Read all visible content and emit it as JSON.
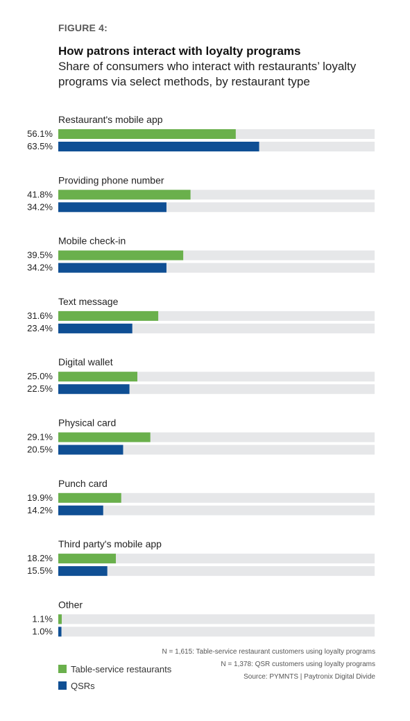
{
  "header": {
    "figure_label": "FIGURE 4:",
    "title": "How patrons interact with loyalty programs",
    "subtitle": "Share of consumers who interact with restaurants’ loyalty programs via select methods, by restaurant type"
  },
  "colors": {
    "table_service": "#6ab04c",
    "qsr": "#0f4f94",
    "track": "#e6e7e9"
  },
  "chart_data": {
    "type": "bar",
    "orientation": "horizontal",
    "title": "How patrons interact with loyalty programs",
    "subtitle": "Share of consumers who interact with restaurants’ loyalty programs via select methods, by restaurant type",
    "categories": [
      "Restaurant's mobile app",
      "Providing phone number",
      "Mobile check-in",
      "Text message",
      "Digital wallet",
      "Physical card",
      "Punch card",
      "Third party's mobile app",
      "Other"
    ],
    "series": [
      {
        "name": "Table-service restaurants",
        "values": [
          56.1,
          41.8,
          39.5,
          31.6,
          25.0,
          29.1,
          19.9,
          18.2,
          1.1
        ],
        "labels": [
          "56.1%",
          "41.8%",
          "39.5%",
          "31.6%",
          "25.0%",
          "29.1%",
          "19.9%",
          "18.2%",
          "1.1%"
        ]
      },
      {
        "name": "QSRs",
        "values": [
          63.5,
          34.2,
          34.2,
          23.4,
          22.5,
          20.5,
          14.2,
          15.5,
          1.0
        ],
        "labels": [
          "63.5%",
          "34.2%",
          "34.2%",
          "23.4%",
          "22.5%",
          "20.5%",
          "14.2%",
          "15.5%",
          "1.0%"
        ]
      }
    ],
    "xlim": [
      0,
      100
    ],
    "unit": "%",
    "grid": false,
    "legend_position": "bottom-left"
  },
  "legend": {
    "items": [
      {
        "label": "Table-service restaurants",
        "series": "table_service"
      },
      {
        "label": "QSRs",
        "series": "qsr"
      }
    ]
  },
  "notes": {
    "line1": "N = 1,615: Table-service restaurant customers using loyalty programs",
    "line2": "N = 1,378: QSR customers using loyalty programs",
    "line3": "Source: PYMNTS | Paytronix   Digital Divide"
  }
}
